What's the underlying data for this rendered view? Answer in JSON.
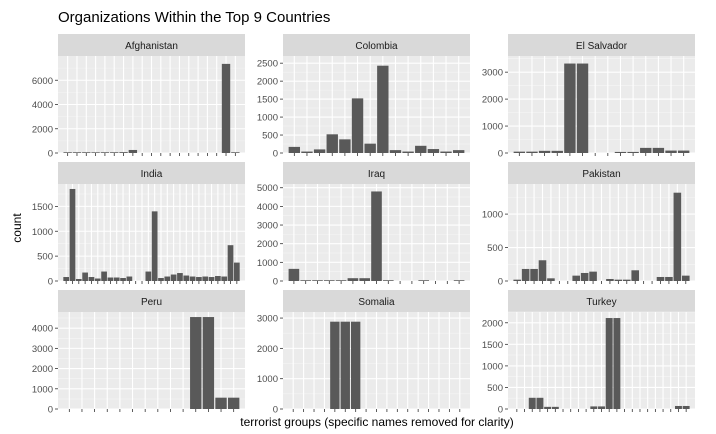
{
  "chart_data": {
    "type": "bar",
    "title": "Organizations Within the Top 9 Countries",
    "xlabel": "terrorist groups (specific names removed for clarity)",
    "ylabel": "count",
    "grid": true,
    "colors": {
      "bar": "#595959",
      "panel_bg": "#ebebeb",
      "grid_major": "#ffffff",
      "grid_minor": "#f5f5f5",
      "strip_bg": "#d9d9d9"
    },
    "facets": [
      {
        "name": "Afghanistan",
        "ylim": [
          0,
          8000
        ],
        "yticks": [
          0,
          2000,
          4000,
          6000
        ],
        "values": [
          60,
          60,
          60,
          55,
          60,
          60,
          70,
          250,
          0,
          0,
          0,
          0,
          0,
          0,
          0,
          0,
          0,
          7350,
          60
        ]
      },
      {
        "name": "Colombia",
        "ylim": [
          0,
          2700
        ],
        "yticks": [
          0,
          500,
          1000,
          1500,
          2000,
          2500
        ],
        "values": [
          170,
          40,
          100,
          520,
          380,
          1520,
          260,
          2430,
          80,
          40,
          200,
          110,
          40,
          80
        ]
      },
      {
        "name": "El Salvador",
        "ylim": [
          0,
          3600
        ],
        "yticks": [
          0,
          1000,
          2000,
          3000
        ],
        "values": [
          50,
          50,
          80,
          80,
          3320,
          3320,
          0,
          0,
          40,
          40,
          190,
          190,
          90,
          90
        ]
      },
      {
        "name": "India",
        "ylim": [
          0,
          1950
        ],
        "yticks": [
          0,
          500,
          1000,
          1500
        ],
        "values": [
          80,
          1850,
          40,
          170,
          80,
          50,
          190,
          70,
          70,
          60,
          90,
          0,
          0,
          190,
          1400,
          60,
          90,
          130,
          160,
          110,
          90,
          80,
          90,
          80,
          100,
          90,
          720,
          370
        ]
      },
      {
        "name": "Iraq",
        "ylim": [
          0,
          5200
        ],
        "yticks": [
          0,
          1000,
          2000,
          3000,
          4000,
          5000
        ],
        "values": [
          650,
          40,
          40,
          40,
          40,
          150,
          150,
          4800,
          40,
          0,
          0,
          40,
          0,
          0,
          40
        ]
      },
      {
        "name": "Pakistan",
        "ylim": [
          0,
          1450
        ],
        "yticks": [
          0,
          500,
          1000
        ],
        "values": [
          20,
          180,
          180,
          310,
          40,
          0,
          0,
          80,
          120,
          140,
          0,
          30,
          20,
          20,
          160,
          0,
          0,
          60,
          60,
          1320,
          80
        ]
      },
      {
        "name": "Peru",
        "ylim": [
          0,
          4800
        ],
        "yticks": [
          0,
          1000,
          2000,
          3000,
          4000
        ],
        "values": [
          0,
          0,
          0,
          0,
          0,
          0,
          0,
          0,
          0,
          0,
          4550,
          4550,
          560,
          560
        ]
      },
      {
        "name": "Somalia",
        "ylim": [
          0,
          3200
        ],
        "yticks": [
          0,
          1000,
          2000,
          3000
        ],
        "values": [
          0,
          0,
          0,
          0,
          2880,
          2880,
          2880,
          0,
          0,
          0,
          0,
          0,
          0,
          0,
          0,
          0,
          0
        ]
      },
      {
        "name": "Turkey",
        "ylim": [
          0,
          2250
        ],
        "yticks": [
          0,
          500,
          1000,
          1500,
          2000
        ],
        "values": [
          0,
          0,
          260,
          260,
          50,
          50,
          0,
          0,
          0,
          0,
          60,
          60,
          2110,
          2110,
          0,
          0,
          0,
          0,
          0,
          0,
          0,
          70,
          70
        ]
      }
    ]
  }
}
